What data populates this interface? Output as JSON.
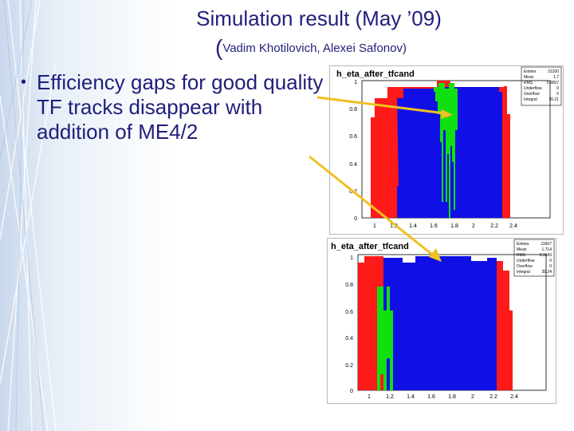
{
  "slide": {
    "title": "Simulation result (May ’09)",
    "subtitle_open": "(",
    "subtitle": "Vadim Khotilovich, Alexei Safonov)",
    "bullet_marker": "•",
    "bullet": "Efficiency gaps for good quality TF tracks disappear with addition of ME4/2"
  },
  "colors": {
    "text": "#1f1f7a",
    "red": "#ff1a1a",
    "blue": "#1010e6",
    "green": "#10e010",
    "arrow": "#f0c020"
  },
  "plots": [
    {
      "title": "h_eta_after_tfcand",
      "stats": [
        {
          "label": "Entries",
          "value": "31200"
        },
        {
          "label": "Mean",
          "value": "1.7"
        },
        {
          "label": "RMS",
          "value": "0.3007"
        },
        {
          "label": "Underflow",
          "value": "0"
        },
        {
          "label": "Overflow",
          "value": "0"
        },
        {
          "label": "Integral",
          "value": "35.21"
        }
      ],
      "y_ticks": [
        "0",
        "0.2",
        "0.4",
        "0.6",
        "0.8",
        "1"
      ],
      "x_ticks": [
        "1",
        "1.2",
        "1.4",
        "1.6",
        "1.8",
        "2",
        "2.2",
        "2.4"
      ]
    },
    {
      "title": "h_eta_after_tfcand",
      "stats": [
        {
          "label": "Entries",
          "value": "11607"
        },
        {
          "label": "Mean",
          "value": "1.714"
        },
        {
          "label": "RMS",
          "value": "0.3343"
        },
        {
          "label": "Underflow",
          "value": "0"
        },
        {
          "label": "Overflow",
          "value": "0"
        },
        {
          "label": "Integral",
          "value": "35.24"
        }
      ],
      "y_ticks": [
        "0",
        "0.2",
        "0.4",
        "0.6",
        "0.8",
        "1"
      ],
      "x_ticks": [
        "1",
        "1.2",
        "1.4",
        "1.6",
        "1.8",
        "2",
        "2.2",
        "2.4"
      ]
    }
  ]
}
